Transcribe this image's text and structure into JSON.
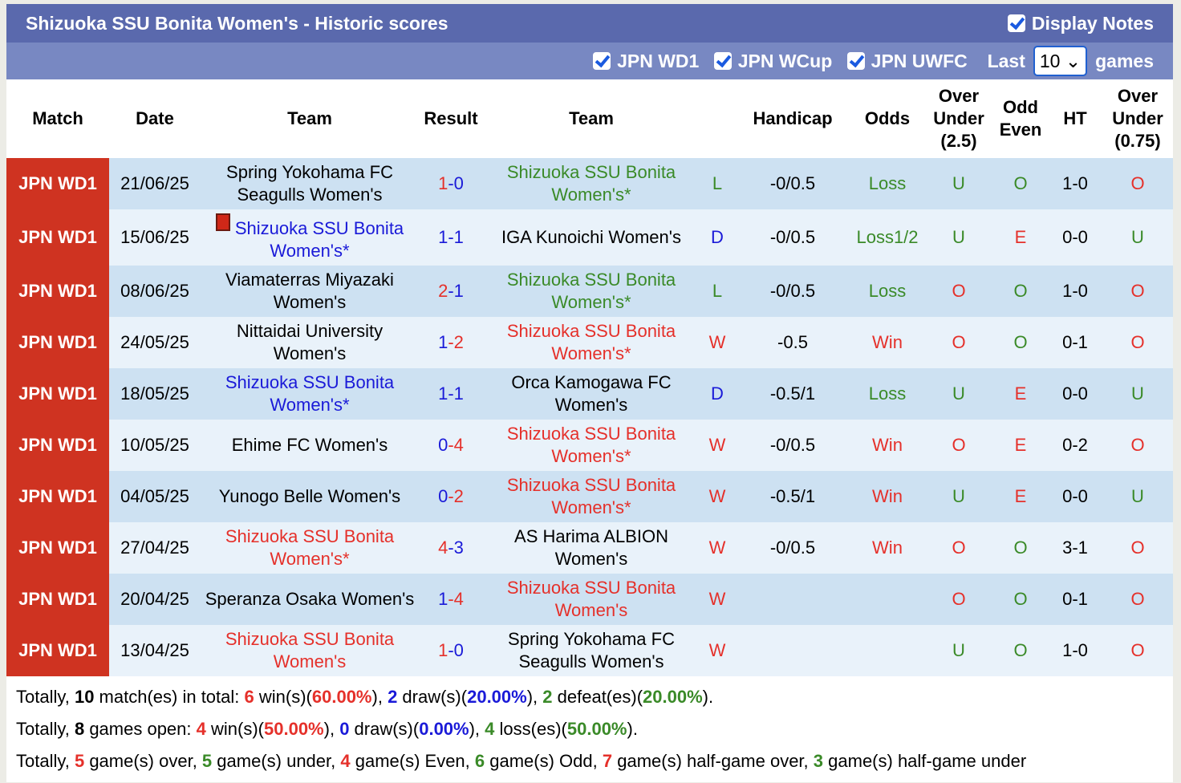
{
  "title": "Shizuoka SSU Bonita Women's - Historic scores",
  "display_notes": "Display Notes",
  "filters": [
    "JPN WD1",
    "JPN WCup",
    "JPN UWFC"
  ],
  "last_label": "Last",
  "last_value": "10",
  "games_label": "games",
  "headers": [
    "Match",
    "Date",
    "Team",
    "Result",
    "Team",
    "",
    "Handicap",
    "Odds",
    "Over Under (2.5)",
    "Odd Even",
    "HT",
    "Over Under (0.75)"
  ],
  "rows": [
    {
      "match": "JPN WD1",
      "date": "21/06/25",
      "home": "Spring Yokohama FC Seagulls Women's",
      "away": "Shizuoka SSU Bonita Women's*",
      "focus": "away",
      "result": "1-0",
      "wl": "L",
      "hcp": "-0/0.5",
      "odds": "Loss",
      "ou": "U",
      "oe": "O",
      "ht": "1-0",
      "ou2": "O"
    },
    {
      "match": "JPN WD1",
      "date": "15/06/25",
      "home": "Shizuoka SSU Bonita Women's*",
      "away": "IGA Kunoichi Women's",
      "focus": "home",
      "card": true,
      "result": "1-1",
      "wl": "D",
      "hcp": "-0/0.5",
      "odds": "Loss1/2",
      "ou": "U",
      "oe": "E",
      "ht": "0-0",
      "ou2": "U"
    },
    {
      "match": "JPN WD1",
      "date": "08/06/25",
      "home": "Viamaterras Miyazaki Women's",
      "away": "Shizuoka SSU Bonita Women's*",
      "focus": "away",
      "result": "2-1",
      "wl": "L",
      "hcp": "-0/0.5",
      "odds": "Loss",
      "ou": "O",
      "oe": "O",
      "ht": "1-0",
      "ou2": "O"
    },
    {
      "match": "JPN WD1",
      "date": "24/05/25",
      "home": "Nittaidai University Women's",
      "away": "Shizuoka SSU Bonita Women's*",
      "focus": "away",
      "result": "1-2",
      "wl": "W",
      "hcp": "-0.5",
      "odds": "Win",
      "ou": "O",
      "oe": "O",
      "ht": "0-1",
      "ou2": "O"
    },
    {
      "match": "JPN WD1",
      "date": "18/05/25",
      "home": "Shizuoka SSU Bonita Women's*",
      "away": "Orca Kamogawa FC Women's",
      "focus": "home",
      "result": "1-1",
      "wl": "D",
      "hcp": "-0.5/1",
      "odds": "Loss",
      "ou": "U",
      "oe": "E",
      "ht": "0-0",
      "ou2": "U"
    },
    {
      "match": "JPN WD1",
      "date": "10/05/25",
      "home": "Ehime FC Women's",
      "away": "Shizuoka SSU Bonita Women's*",
      "focus": "away",
      "result": "0-4",
      "wl": "W",
      "hcp": "-0/0.5",
      "odds": "Win",
      "ou": "O",
      "oe": "E",
      "ht": "0-2",
      "ou2": "O"
    },
    {
      "match": "JPN WD1",
      "date": "04/05/25",
      "home": "Yunogo Belle Women's",
      "away": "Shizuoka SSU Bonita Women's*",
      "focus": "away",
      "result": "0-2",
      "wl": "W",
      "hcp": "-0.5/1",
      "odds": "Win",
      "ou": "U",
      "oe": "E",
      "ht": "0-0",
      "ou2": "U"
    },
    {
      "match": "JPN WD1",
      "date": "27/04/25",
      "home": "Shizuoka SSU Bonita Women's*",
      "away": "AS Harima ALBION Women's",
      "focus": "home",
      "result": "4-3",
      "wl": "W",
      "hcp": "-0/0.5",
      "odds": "Win",
      "ou": "O",
      "oe": "O",
      "ht": "3-1",
      "ou2": "O"
    },
    {
      "match": "JPN WD1",
      "date": "20/04/25",
      "home": "Speranza Osaka Women's",
      "away": "Shizuoka SSU Bonita Women's",
      "focus": "away",
      "result": "1-4",
      "wl": "W",
      "hcp": "",
      "odds": "",
      "ou": "O",
      "oe": "O",
      "ht": "0-1",
      "ou2": "O"
    },
    {
      "match": "JPN WD1",
      "date": "13/04/25",
      "home": "Shizuoka SSU Bonita Women's",
      "away": "Spring Yokohama FC Seagulls Women's",
      "focus": "home",
      "result": "1-0",
      "wl": "W",
      "hcp": "",
      "odds": "",
      "ou": "U",
      "oe": "O",
      "ht": "1-0",
      "ou2": "O"
    }
  ],
  "summary": [
    [
      [
        "Totally, ",
        ""
      ],
      [
        "10",
        "b"
      ],
      [
        " match(es) in total: ",
        ""
      ],
      [
        "6",
        "r"
      ],
      [
        " win(s)(",
        ""
      ],
      [
        "60.00%",
        "r"
      ],
      [
        "), ",
        ""
      ],
      [
        "2",
        "bl"
      ],
      [
        " draw(s)(",
        ""
      ],
      [
        "20.00%",
        "bl"
      ],
      [
        "), ",
        ""
      ],
      [
        "2",
        "g"
      ],
      [
        " defeat(es)(",
        ""
      ],
      [
        "20.00%",
        "g"
      ],
      [
        ").",
        ""
      ]
    ],
    [
      [
        "Totally, ",
        ""
      ],
      [
        "8",
        "b"
      ],
      [
        " games open: ",
        ""
      ],
      [
        "4",
        "r"
      ],
      [
        " win(s)(",
        ""
      ],
      [
        "50.00%",
        "r"
      ],
      [
        "), ",
        ""
      ],
      [
        "0",
        "bl"
      ],
      [
        " draw(s)(",
        ""
      ],
      [
        "0.00%",
        "bl"
      ],
      [
        "), ",
        ""
      ],
      [
        "4",
        "g"
      ],
      [
        " loss(es)(",
        ""
      ],
      [
        "50.00%",
        "g"
      ],
      [
        ").",
        ""
      ]
    ],
    [
      [
        "Totally, ",
        ""
      ],
      [
        "5",
        "r"
      ],
      [
        " game(s) over, ",
        ""
      ],
      [
        "5",
        "g"
      ],
      [
        " game(s) under, ",
        ""
      ],
      [
        "4",
        "r"
      ],
      [
        " game(s) Even, ",
        ""
      ],
      [
        "6",
        "g"
      ],
      [
        " game(s) Odd, ",
        ""
      ],
      [
        "7",
        "r"
      ],
      [
        " game(s) half-game over, ",
        ""
      ],
      [
        "3",
        "g"
      ],
      [
        " game(s) half-game under",
        ""
      ]
    ]
  ]
}
